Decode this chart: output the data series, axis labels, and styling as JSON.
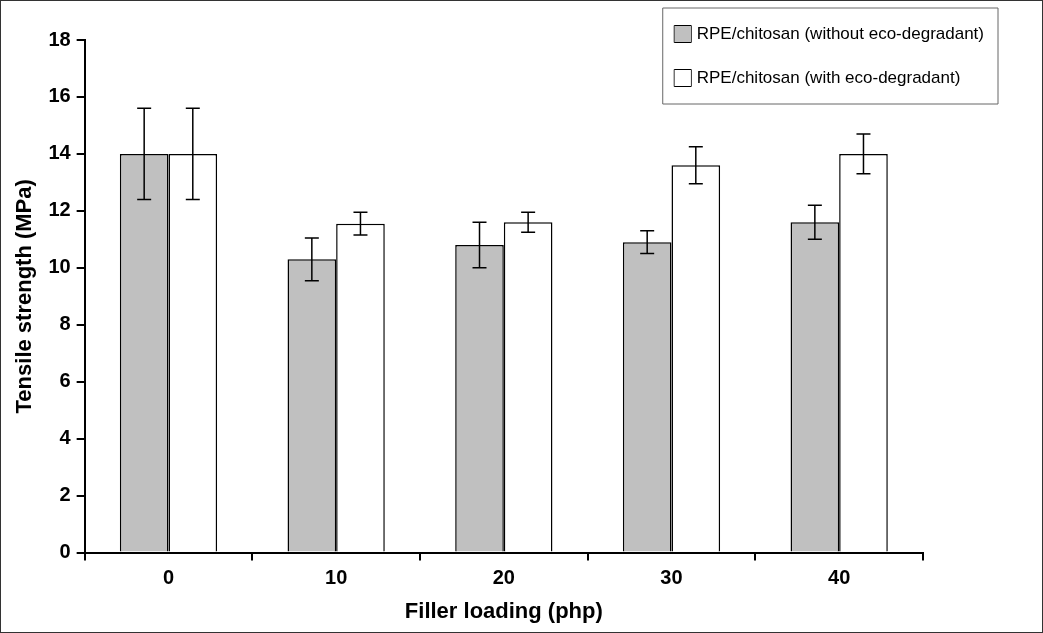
{
  "chart_data": {
    "type": "bar",
    "xlabel": "Filler loading (php)",
    "ylabel": "Tensile strength (MPa)",
    "categories": [
      "0",
      "10",
      "20",
      "30",
      "40"
    ],
    "series": [
      {
        "name": "RPE/chitosan (without eco-degradant)",
        "color": "#c0c0c0",
        "values": [
          14,
          10.3,
          10.8,
          10.9,
          11.6
        ],
        "errors": [
          1.6,
          0.75,
          0.8,
          0.4,
          0.6
        ]
      },
      {
        "name": "RPE/chitosan (with eco-degradant)",
        "color": "#ffffff",
        "values": [
          14,
          11.55,
          11.6,
          13.6,
          14
        ],
        "errors": [
          1.6,
          0.4,
          0.35,
          0.65,
          0.7
        ]
      }
    ],
    "ylim": [
      0,
      18
    ],
    "yticks": [
      0,
      2,
      4,
      6,
      8,
      10,
      12,
      14,
      16,
      18
    ],
    "grid": false,
    "legend": "top right"
  }
}
